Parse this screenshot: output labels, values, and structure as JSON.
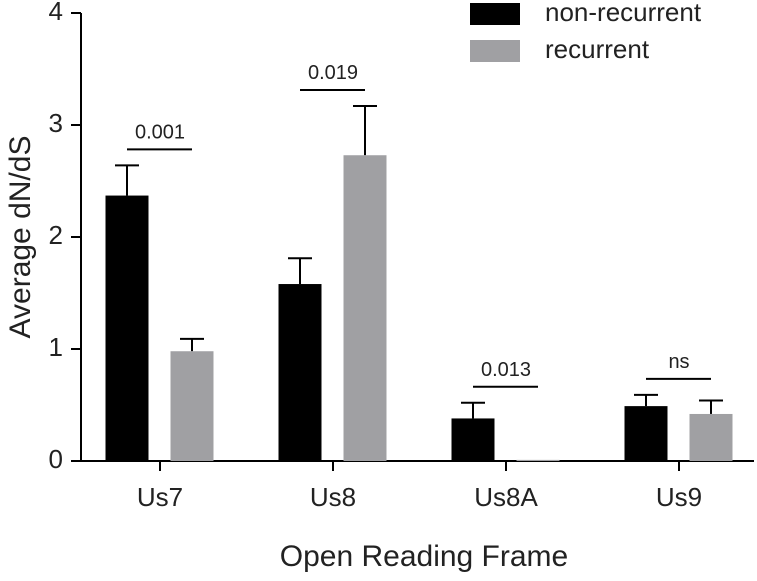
{
  "chart_data": {
    "type": "bar",
    "x_label": "Open Reading Frame",
    "y_label": "Average dN/dS",
    "categories": [
      "Us7",
      "Us8",
      "Us8A",
      "Us9"
    ],
    "series": [
      {
        "name": "non-recurrent",
        "color": "#000000",
        "values": [
          2.37,
          1.58,
          0.38,
          0.49
        ],
        "errors": [
          0.27,
          0.23,
          0.14,
          0.1
        ]
      },
      {
        "name": "recurrent",
        "color": "#a0a0a3",
        "values": [
          0.98,
          2.73,
          0.01,
          0.42
        ],
        "errors": [
          0.11,
          0.44,
          0,
          0.12
        ]
      }
    ],
    "significance": [
      "0.001",
      "0.019",
      "0.013",
      "ns"
    ],
    "ylim": [
      0,
      4
    ],
    "yticks": [
      0,
      1,
      2,
      3,
      4
    ],
    "grid": false,
    "legend": "top-right"
  }
}
